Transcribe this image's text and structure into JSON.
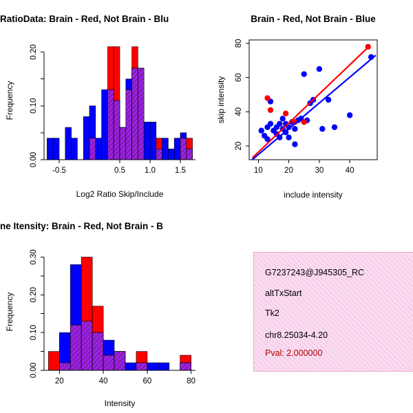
{
  "window": {
    "background": "#FFFFFF"
  },
  "colors": {
    "red": "#FF0000",
    "blue": "#0000FF",
    "overlap_fill": "#A020F0",
    "overlap_hatch": "#7B1FA2",
    "axis": "#000000",
    "info_box_bg": "#FADCF0",
    "info_box_hatch": "#F2C2E2",
    "info_box_border": "#EAAAD2",
    "pval_text": "#B30000"
  },
  "chart_data": [
    {
      "id": "ratio-hist",
      "type": "histogram",
      "title": "RatioData: Brain - Red, Not Brain - Blu",
      "xlabel": "Log2 Ratio Skip/Include",
      "ylabel": "Frequency",
      "xlim": [
        -0.75,
        1.75
      ],
      "ylim": [
        0,
        0.22
      ],
      "xticks": [
        -0.5,
        0.5,
        1.0,
        1.5
      ],
      "xtick_labels": [
        "-0.5",
        "0.5",
        "1.0",
        "1.5"
      ],
      "yticks": [
        0,
        0.1,
        0.2
      ],
      "ytick_labels": [
        "0.00",
        "0.10",
        "0.20"
      ],
      "yticks_minor": [
        0.05,
        0.15
      ],
      "bin_width": 0.1,
      "series_legend": [
        {
          "name": "Brain",
          "color": "#FF0000"
        },
        {
          "name": "Not Brain",
          "color": "#0000FF"
        }
      ],
      "bins": [
        {
          "x": -0.7,
          "red": 0,
          "blue": 0.04
        },
        {
          "x": -0.6,
          "red": 0,
          "blue": 0.04
        },
        {
          "x": -0.5,
          "red": 0,
          "blue": 0
        },
        {
          "x": -0.4,
          "red": 0,
          "blue": 0.06
        },
        {
          "x": -0.3,
          "red": 0,
          "blue": 0.04
        },
        {
          "x": -0.2,
          "red": 0,
          "blue": 0
        },
        {
          "x": -0.1,
          "red": 0,
          "blue": 0.08
        },
        {
          "x": 0.0,
          "red": 0.04,
          "blue": 0.1
        },
        {
          "x": 0.1,
          "red": 0,
          "blue": 0.04
        },
        {
          "x": 0.2,
          "red": 0,
          "blue": 0.13
        },
        {
          "x": 0.3,
          "red": 0.21,
          "blue": 0.13
        },
        {
          "x": 0.4,
          "red": 0.21,
          "blue": 0.11
        },
        {
          "x": 0.5,
          "red": 0.06,
          "blue": 0.06
        },
        {
          "x": 0.6,
          "red": 0.13,
          "blue": 0.15
        },
        {
          "x": 0.7,
          "red": 0.21,
          "blue": 0.17
        },
        {
          "x": 0.8,
          "red": 0.17,
          "blue": 0.17
        },
        {
          "x": 0.9,
          "red": 0,
          "blue": 0.07
        },
        {
          "x": 1.0,
          "red": 0,
          "blue": 0.07
        },
        {
          "x": 1.1,
          "red": 0.04,
          "blue": 0.02
        },
        {
          "x": 1.2,
          "red": 0,
          "blue": 0.04
        },
        {
          "x": 1.3,
          "red": 0,
          "blue": 0.02
        },
        {
          "x": 1.4,
          "red": 0,
          "blue": 0.04
        },
        {
          "x": 1.5,
          "red": 0.04,
          "blue": 0.05
        },
        {
          "x": 1.6,
          "red": 0.04,
          "blue": 0.02
        }
      ]
    },
    {
      "id": "scatter",
      "type": "scatter",
      "title": "Brain - Red, Not Brain - Blue",
      "xlabel": "include intensity",
      "ylabel": "skip intensity",
      "xlim": [
        7,
        49
      ],
      "ylim": [
        12,
        82
      ],
      "xticks": [
        10,
        20,
        30,
        40
      ],
      "xtick_labels": [
        "10",
        "20",
        "30",
        "40"
      ],
      "yticks": [
        20,
        40,
        60,
        80
      ],
      "ytick_labels": [
        "20",
        "40",
        "60",
        "80"
      ],
      "series": [
        {
          "name": "not-brain",
          "color": "#0000FF",
          "points": [
            [
              11,
              29
            ],
            [
              12,
              26
            ],
            [
              13,
              24
            ],
            [
              13,
              31
            ],
            [
              14,
              33
            ],
            [
              14,
              46
            ],
            [
              15,
              29
            ],
            [
              16,
              27
            ],
            [
              16,
              31
            ],
            [
              17,
              25
            ],
            [
              17,
              33
            ],
            [
              18,
              30
            ],
            [
              18,
              36
            ],
            [
              19,
              28
            ],
            [
              19,
              33
            ],
            [
              20,
              25
            ],
            [
              20,
              31
            ],
            [
              21,
              34
            ],
            [
              22,
              21
            ],
            [
              22,
              30
            ],
            [
              23,
              35
            ],
            [
              24,
              36
            ],
            [
              25,
              62
            ],
            [
              26,
              35
            ],
            [
              27,
              45
            ],
            [
              28,
              47
            ],
            [
              30,
              65
            ],
            [
              31,
              30
            ],
            [
              33,
              47
            ],
            [
              35,
              31
            ],
            [
              40,
              38
            ],
            [
              47,
              72
            ]
          ]
        },
        {
          "name": "brain",
          "color": "#FF0000",
          "points": [
            [
              13,
              48
            ],
            [
              14,
              41
            ],
            [
              19,
              39
            ],
            [
              22,
              34
            ],
            [
              25,
              34
            ],
            [
              46,
              78
            ]
          ]
        }
      ],
      "lines": [
        {
          "name": "blue-fit",
          "color": "#0000FF",
          "x1": 8,
          "y1": 12,
          "x2": 48.5,
          "y2": 73
        },
        {
          "name": "red-fit",
          "color": "#FF0000",
          "x1": 8,
          "y1": 13,
          "x2": 46.5,
          "y2": 78.5
        }
      ]
    },
    {
      "id": "intensity-hist",
      "type": "histogram",
      "title": "ne Itensity: Brain - Red, Not Brain - B",
      "xlabel": "Intensity",
      "ylabel": "Frequency",
      "xlim": [
        13,
        82
      ],
      "ylim": [
        0,
        0.31
      ],
      "xticks": [
        20,
        40,
        60,
        80
      ],
      "xtick_labels": [
        "20",
        "40",
        "60",
        "80"
      ],
      "yticks": [
        0,
        0.1,
        0.2,
        0.3
      ],
      "ytick_labels": [
        "0.00",
        "0.10",
        "0.20",
        "0.30"
      ],
      "yticks_minor": [
        0.05,
        0.15,
        0.25
      ],
      "bin_width": 5,
      "series_legend": [
        {
          "name": "Brain",
          "color": "#FF0000"
        },
        {
          "name": "Not Brain",
          "color": "#0000FF"
        }
      ],
      "bins": [
        {
          "x": 15,
          "red": 0.05,
          "blue": 0
        },
        {
          "x": 20,
          "red": 0.02,
          "blue": 0.1
        },
        {
          "x": 25,
          "red": 0.12,
          "blue": 0.28
        },
        {
          "x": 30,
          "red": 0.3,
          "blue": 0.13
        },
        {
          "x": 35,
          "red": 0.17,
          "blue": 0.1
        },
        {
          "x": 40,
          "red": 0.04,
          "blue": 0.08
        },
        {
          "x": 45,
          "red": 0.05,
          "blue": 0.05
        },
        {
          "x": 50,
          "red": 0,
          "blue": 0.02
        },
        {
          "x": 55,
          "red": 0.05,
          "blue": 0.02
        },
        {
          "x": 60,
          "red": 0,
          "blue": 0.02
        },
        {
          "x": 65,
          "red": 0,
          "blue": 0.02
        },
        {
          "x": 70,
          "red": 0,
          "blue": 0
        },
        {
          "x": 75,
          "red": 0.04,
          "blue": 0.02
        }
      ]
    }
  ],
  "info_panel": {
    "lines": [
      "G7237243@J945305_RC",
      "altTxStart",
      "Tk2",
      "chr8.25034-4.20",
      "Pval: 2.000000"
    ]
  }
}
